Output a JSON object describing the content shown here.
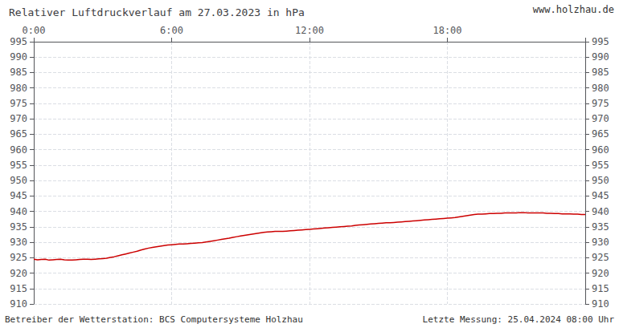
{
  "chart_data": {
    "type": "line",
    "title": "Relativer Luftdruckverlauf am 27.03.2023 in hPa",
    "annotations": [
      "www.holzhau.de",
      "Betreiber der Wetterstation: BCS Computersysteme Holzhau",
      "Letzte Messung: 25.04.2024 08:00 Uhr"
    ],
    "color": "#cc0000",
    "grid": true,
    "xlim": [
      0,
      1440
    ],
    "xticks": [
      {
        "value": 0,
        "label": "0:00"
      },
      {
        "value": 360,
        "label": "6:00"
      },
      {
        "value": 720,
        "label": "12:00"
      },
      {
        "value": 1080,
        "label": "18:00"
      }
    ],
    "ylim": [
      910,
      995
    ],
    "yticks": [
      910,
      915,
      920,
      925,
      930,
      935,
      940,
      945,
      950,
      955,
      960,
      965,
      970,
      975,
      980,
      985,
      990,
      995
    ],
    "y2lim": [
      910,
      995
    ],
    "y2ticks": [
      910,
      915,
      920,
      925,
      930,
      935,
      940,
      945,
      950,
      955,
      960,
      965,
      970,
      975,
      980,
      985,
      990,
      995
    ],
    "x": [
      0,
      10,
      20,
      30,
      40,
      50,
      60,
      70,
      80,
      90,
      100,
      110,
      120,
      130,
      140,
      150,
      160,
      170,
      180,
      190,
      200,
      210,
      220,
      230,
      240,
      250,
      260,
      270,
      280,
      290,
      300,
      310,
      320,
      330,
      340,
      350,
      360,
      370,
      380,
      390,
      400,
      410,
      420,
      430,
      440,
      450,
      460,
      470,
      480,
      490,
      500,
      510,
      520,
      530,
      540,
      550,
      560,
      570,
      580,
      590,
      600,
      610,
      620,
      630,
      640,
      650,
      660,
      670,
      680,
      690,
      700,
      710,
      720,
      730,
      740,
      750,
      760,
      770,
      780,
      790,
      800,
      810,
      820,
      830,
      840,
      850,
      860,
      870,
      880,
      890,
      900,
      910,
      920,
      930,
      940,
      950,
      960,
      970,
      980,
      990,
      1000,
      1010,
      1020,
      1030,
      1040,
      1050,
      1060,
      1070,
      1080,
      1090,
      1100,
      1110,
      1120,
      1130,
      1140,
      1150,
      1160,
      1170,
      1180,
      1190,
      1200,
      1210,
      1220,
      1230,
      1240,
      1250,
      1260,
      1270,
      1280,
      1290,
      1300,
      1310,
      1320,
      1330,
      1340,
      1350,
      1360,
      1370,
      1380,
      1390,
      1400,
      1410,
      1420,
      1430,
      1440
    ],
    "values": [
      924.5,
      924.3,
      924.4,
      924.5,
      924.2,
      924.3,
      924.4,
      924.5,
      924.3,
      924.2,
      924.2,
      924.3,
      924.4,
      924.5,
      924.5,
      924.4,
      924.5,
      924.6,
      924.7,
      924.8,
      925.1,
      925.3,
      925.6,
      925.9,
      926.2,
      926.5,
      926.8,
      927.1,
      927.5,
      927.8,
      928.1,
      928.3,
      928.5,
      928.7,
      928.9,
      929.1,
      929.2,
      929.3,
      929.4,
      929.4,
      929.5,
      929.6,
      929.7,
      929.8,
      929.9,
      930.1,
      930.3,
      930.5,
      930.7,
      930.9,
      931.1,
      931.3,
      931.6,
      931.8,
      932.0,
      932.2,
      932.4,
      932.6,
      932.8,
      933.0,
      933.2,
      933.3,
      933.4,
      933.5,
      933.5,
      933.5,
      933.6,
      933.7,
      933.8,
      933.9,
      934.0,
      934.1,
      934.2,
      934.3,
      934.4,
      934.5,
      934.6,
      934.7,
      934.8,
      934.9,
      935.0,
      935.1,
      935.2,
      935.3,
      935.5,
      935.6,
      935.7,
      935.8,
      935.9,
      936.0,
      936.1,
      936.2,
      936.3,
      936.3,
      936.4,
      936.5,
      936.6,
      936.7,
      936.8,
      936.9,
      937.0,
      937.1,
      937.2,
      937.3,
      937.4,
      937.5,
      937.6,
      937.7,
      937.8,
      937.9,
      938.0,
      938.2,
      938.4,
      938.6,
      938.8,
      939.0,
      939.1,
      939.1,
      939.2,
      939.3,
      939.3,
      939.4,
      939.4,
      939.5,
      939.5,
      939.5,
      939.5,
      939.6,
      939.6,
      939.5,
      939.5,
      939.5,
      939.5,
      939.5,
      939.4,
      939.4,
      939.3,
      939.3,
      939.2,
      939.2,
      939.2,
      939.1,
      939.1,
      939.0,
      939.0
    ]
  }
}
